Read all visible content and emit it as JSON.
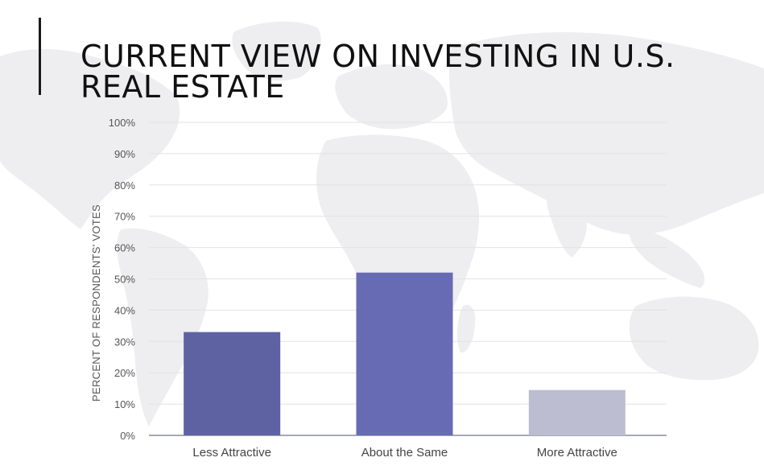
{
  "title": "CURRENT VIEW ON INVESTING IN U.S. REAL ESTATE",
  "colors": {
    "background": "#ffffff",
    "map": "#eeeef0",
    "grid": "#e2e2e6",
    "axis": "#8a8aa0"
  },
  "chart_data": {
    "type": "bar",
    "title": "CURRENT VIEW ON INVESTING IN U.S. REAL ESTATE",
    "xlabel": "",
    "ylabel": "PERCENT OF RESPONDENTS' VOTES",
    "categories": [
      "Less Attractive",
      "About the Same",
      "More Attractive"
    ],
    "values": [
      33,
      52,
      14.5
    ],
    "bar_colors": [
      "#5f62a2",
      "#676bb4",
      "#bcbdd0"
    ],
    "ylim": [
      0,
      100
    ],
    "yticks": [
      "0%",
      "10%",
      "20%",
      "30%",
      "40%",
      "50%",
      "60%",
      "70%",
      "80%",
      "90%",
      "100%"
    ],
    "grid": true,
    "legend": "none"
  }
}
